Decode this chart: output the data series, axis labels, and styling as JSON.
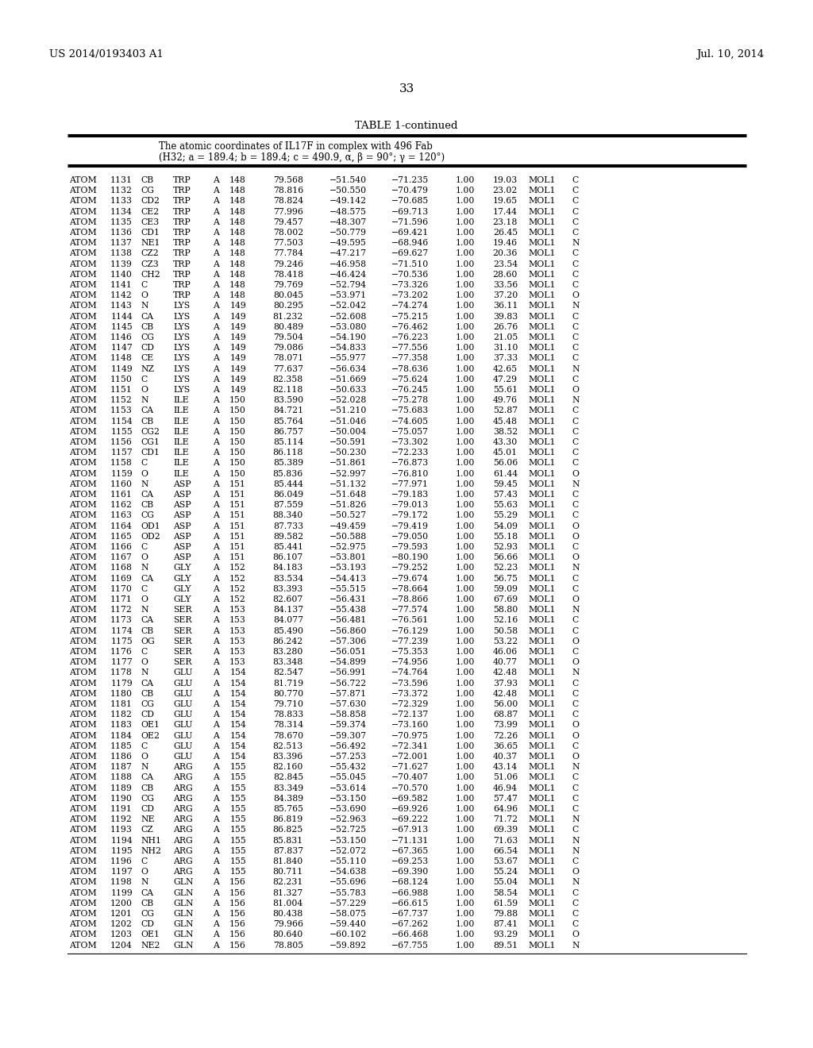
{
  "patent_left": "US 2014/0193403 A1",
  "patent_right": "Jul. 10, 2014",
  "page_number": "33",
  "table_title": "TABLE 1-continued",
  "subtitle_line1": "The atomic coordinates of IL17F in complex with 496 Fab",
  "subtitle_line2": "(H32; a = 189.4; b = 189.4; c = 490.9, α, β = 90°; γ = 120°)",
  "background_color": "#ffffff",
  "text_color": "#000000",
  "rows": [
    [
      "ATOM",
      "1131",
      "CB",
      "TRP",
      "A",
      "148",
      "79.568",
      "−51.540",
      "−71.235",
      "1.00",
      "19.03",
      "MOL1",
      "C"
    ],
    [
      "ATOM",
      "1132",
      "CG",
      "TRP",
      "A",
      "148",
      "78.816",
      "−50.550",
      "−70.479",
      "1.00",
      "23.02",
      "MOL1",
      "C"
    ],
    [
      "ATOM",
      "1133",
      "CD2",
      "TRP",
      "A",
      "148",
      "78.824",
      "−49.142",
      "−70.685",
      "1.00",
      "19.65",
      "MOL1",
      "C"
    ],
    [
      "ATOM",
      "1134",
      "CE2",
      "TRP",
      "A",
      "148",
      "77.996",
      "−48.575",
      "−69.713",
      "1.00",
      "17.44",
      "MOL1",
      "C"
    ],
    [
      "ATOM",
      "1135",
      "CE3",
      "TRP",
      "A",
      "148",
      "79.457",
      "−48.307",
      "−71.596",
      "1.00",
      "23.18",
      "MOL1",
      "C"
    ],
    [
      "ATOM",
      "1136",
      "CD1",
      "TRP",
      "A",
      "148",
      "78.002",
      "−50.779",
      "−69.421",
      "1.00",
      "26.45",
      "MOL1",
      "C"
    ],
    [
      "ATOM",
      "1137",
      "NE1",
      "TRP",
      "A",
      "148",
      "77.503",
      "−49.595",
      "−68.946",
      "1.00",
      "19.46",
      "MOL1",
      "N"
    ],
    [
      "ATOM",
      "1138",
      "CZ2",
      "TRP",
      "A",
      "148",
      "77.784",
      "−47.217",
      "−69.627",
      "1.00",
      "20.36",
      "MOL1",
      "C"
    ],
    [
      "ATOM",
      "1139",
      "CZ3",
      "TRP",
      "A",
      "148",
      "79.246",
      "−46.958",
      "−71.510",
      "1.00",
      "23.54",
      "MOL1",
      "C"
    ],
    [
      "ATOM",
      "1140",
      "CH2",
      "TRP",
      "A",
      "148",
      "78.418",
      "−46.424",
      "−70.536",
      "1.00",
      "28.60",
      "MOL1",
      "C"
    ],
    [
      "ATOM",
      "1141",
      "C",
      "TRP",
      "A",
      "148",
      "79.769",
      "−52.794",
      "−73.326",
      "1.00",
      "33.56",
      "MOL1",
      "C"
    ],
    [
      "ATOM",
      "1142",
      "O",
      "TRP",
      "A",
      "148",
      "80.045",
      "−53.971",
      "−73.202",
      "1.00",
      "37.20",
      "MOL1",
      "O"
    ],
    [
      "ATOM",
      "1143",
      "N",
      "LYS",
      "A",
      "149",
      "80.295",
      "−52.042",
      "−74.274",
      "1.00",
      "36.11",
      "MOL1",
      "N"
    ],
    [
      "ATOM",
      "1144",
      "CA",
      "LYS",
      "A",
      "149",
      "81.232",
      "−52.608",
      "−75.215",
      "1.00",
      "39.83",
      "MOL1",
      "C"
    ],
    [
      "ATOM",
      "1145",
      "CB",
      "LYS",
      "A",
      "149",
      "80.489",
      "−53.080",
      "−76.462",
      "1.00",
      "26.76",
      "MOL1",
      "C"
    ],
    [
      "ATOM",
      "1146",
      "CG",
      "LYS",
      "A",
      "149",
      "79.504",
      "−54.190",
      "−76.223",
      "1.00",
      "21.05",
      "MOL1",
      "C"
    ],
    [
      "ATOM",
      "1147",
      "CD",
      "LYS",
      "A",
      "149",
      "79.086",
      "−54.833",
      "−77.556",
      "1.00",
      "31.10",
      "MOL1",
      "C"
    ],
    [
      "ATOM",
      "1148",
      "CE",
      "LYS",
      "A",
      "149",
      "78.071",
      "−55.977",
      "−77.358",
      "1.00",
      "37.33",
      "MOL1",
      "C"
    ],
    [
      "ATOM",
      "1149",
      "NZ",
      "LYS",
      "A",
      "149",
      "77.637",
      "−56.634",
      "−78.636",
      "1.00",
      "42.65",
      "MOL1",
      "N"
    ],
    [
      "ATOM",
      "1150",
      "C",
      "LYS",
      "A",
      "149",
      "82.358",
      "−51.669",
      "−75.624",
      "1.00",
      "47.29",
      "MOL1",
      "C"
    ],
    [
      "ATOM",
      "1151",
      "O",
      "LYS",
      "A",
      "149",
      "82.118",
      "−50.633",
      "−76.245",
      "1.00",
      "55.61",
      "MOL1",
      "O"
    ],
    [
      "ATOM",
      "1152",
      "N",
      "ILE",
      "A",
      "150",
      "83.590",
      "−52.028",
      "−75.278",
      "1.00",
      "49.76",
      "MOL1",
      "N"
    ],
    [
      "ATOM",
      "1153",
      "CA",
      "ILE",
      "A",
      "150",
      "84.721",
      "−51.210",
      "−75.683",
      "1.00",
      "52.87",
      "MOL1",
      "C"
    ],
    [
      "ATOM",
      "1154",
      "CB",
      "ILE",
      "A",
      "150",
      "85.764",
      "−51.046",
      "−74.605",
      "1.00",
      "45.48",
      "MOL1",
      "C"
    ],
    [
      "ATOM",
      "1155",
      "CG2",
      "ILE",
      "A",
      "150",
      "86.757",
      "−50.004",
      "−75.057",
      "1.00",
      "38.52",
      "MOL1",
      "C"
    ],
    [
      "ATOM",
      "1156",
      "CG1",
      "ILE",
      "A",
      "150",
      "85.114",
      "−50.591",
      "−73.302",
      "1.00",
      "43.30",
      "MOL1",
      "C"
    ],
    [
      "ATOM",
      "1157",
      "CD1",
      "ILE",
      "A",
      "150",
      "86.118",
      "−50.230",
      "−72.233",
      "1.00",
      "45.01",
      "MOL1",
      "C"
    ],
    [
      "ATOM",
      "1158",
      "C",
      "ILE",
      "A",
      "150",
      "85.389",
      "−51.861",
      "−76.873",
      "1.00",
      "56.06",
      "MOL1",
      "C"
    ],
    [
      "ATOM",
      "1159",
      "O",
      "ILE",
      "A",
      "150",
      "85.836",
      "−52.997",
      "−76.810",
      "1.00",
      "61.44",
      "MOL1",
      "O"
    ],
    [
      "ATOM",
      "1160",
      "N",
      "ASP",
      "A",
      "151",
      "85.444",
      "−51.132",
      "−77.971",
      "1.00",
      "59.45",
      "MOL1",
      "N"
    ],
    [
      "ATOM",
      "1161",
      "CA",
      "ASP",
      "A",
      "151",
      "86.049",
      "−51.648",
      "−79.183",
      "1.00",
      "57.43",
      "MOL1",
      "C"
    ],
    [
      "ATOM",
      "1162",
      "CB",
      "ASP",
      "A",
      "151",
      "87.559",
      "−51.826",
      "−79.013",
      "1.00",
      "55.63",
      "MOL1",
      "C"
    ],
    [
      "ATOM",
      "1163",
      "CG",
      "ASP",
      "A",
      "151",
      "88.340",
      "−50.527",
      "−79.172",
      "1.00",
      "55.29",
      "MOL1",
      "C"
    ],
    [
      "ATOM",
      "1164",
      "OD1",
      "ASP",
      "A",
      "151",
      "87.733",
      "−49.459",
      "−79.419",
      "1.00",
      "54.09",
      "MOL1",
      "O"
    ],
    [
      "ATOM",
      "1165",
      "OD2",
      "ASP",
      "A",
      "151",
      "89.582",
      "−50.588",
      "−79.050",
      "1.00",
      "55.18",
      "MOL1",
      "O"
    ],
    [
      "ATOM",
      "1166",
      "C",
      "ASP",
      "A",
      "151",
      "85.441",
      "−52.975",
      "−79.593",
      "1.00",
      "52.93",
      "MOL1",
      "C"
    ],
    [
      "ATOM",
      "1167",
      "O",
      "ASP",
      "A",
      "151",
      "86.107",
      "−53.801",
      "−80.190",
      "1.00",
      "56.66",
      "MOL1",
      "O"
    ],
    [
      "ATOM",
      "1168",
      "N",
      "GLY",
      "A",
      "152",
      "84.183",
      "−53.193",
      "−79.252",
      "1.00",
      "52.23",
      "MOL1",
      "N"
    ],
    [
      "ATOM",
      "1169",
      "CA",
      "GLY",
      "A",
      "152",
      "83.534",
      "−54.413",
      "−79.674",
      "1.00",
      "56.75",
      "MOL1",
      "C"
    ],
    [
      "ATOM",
      "1170",
      "C",
      "GLY",
      "A",
      "152",
      "83.393",
      "−55.515",
      "−78.664",
      "1.00",
      "59.09",
      "MOL1",
      "C"
    ],
    [
      "ATOM",
      "1171",
      "O",
      "GLY",
      "A",
      "152",
      "82.607",
      "−56.431",
      "−78.866",
      "1.00",
      "67.69",
      "MOL1",
      "O"
    ],
    [
      "ATOM",
      "1172",
      "N",
      "SER",
      "A",
      "153",
      "84.137",
      "−55.438",
      "−77.574",
      "1.00",
      "58.80",
      "MOL1",
      "N"
    ],
    [
      "ATOM",
      "1173",
      "CA",
      "SER",
      "A",
      "153",
      "84.077",
      "−56.481",
      "−76.561",
      "1.00",
      "52.16",
      "MOL1",
      "C"
    ],
    [
      "ATOM",
      "1174",
      "CB",
      "SER",
      "A",
      "153",
      "85.490",
      "−56.860",
      "−76.129",
      "1.00",
      "50.58",
      "MOL1",
      "C"
    ],
    [
      "ATOM",
      "1175",
      "OG",
      "SER",
      "A",
      "153",
      "86.242",
      "−57.306",
      "−77.239",
      "1.00",
      "53.22",
      "MOL1",
      "O"
    ],
    [
      "ATOM",
      "1176",
      "C",
      "SER",
      "A",
      "153",
      "83.280",
      "−56.051",
      "−75.353",
      "1.00",
      "46.06",
      "MOL1",
      "C"
    ],
    [
      "ATOM",
      "1177",
      "O",
      "SER",
      "A",
      "153",
      "83.348",
      "−54.899",
      "−74.956",
      "1.00",
      "40.77",
      "MOL1",
      "O"
    ],
    [
      "ATOM",
      "1178",
      "N",
      "GLU",
      "A",
      "154",
      "82.547",
      "−56.991",
      "−74.764",
      "1.00",
      "42.48",
      "MOL1",
      "N"
    ],
    [
      "ATOM",
      "1179",
      "CA",
      "GLU",
      "A",
      "154",
      "81.719",
      "−56.722",
      "−73.596",
      "1.00",
      "37.93",
      "MOL1",
      "C"
    ],
    [
      "ATOM",
      "1180",
      "CB",
      "GLU",
      "A",
      "154",
      "80.770",
      "−57.871",
      "−73.372",
      "1.00",
      "42.48",
      "MOL1",
      "C"
    ],
    [
      "ATOM",
      "1181",
      "CG",
      "GLU",
      "A",
      "154",
      "79.710",
      "−57.630",
      "−72.329",
      "1.00",
      "56.00",
      "MOL1",
      "C"
    ],
    [
      "ATOM",
      "1182",
      "CD",
      "GLU",
      "A",
      "154",
      "78.833",
      "−58.858",
      "−72.137",
      "1.00",
      "68.87",
      "MOL1",
      "C"
    ],
    [
      "ATOM",
      "1183",
      "OE1",
      "GLU",
      "A",
      "154",
      "78.314",
      "−59.374",
      "−73.160",
      "1.00",
      "73.99",
      "MOL1",
      "O"
    ],
    [
      "ATOM",
      "1184",
      "OE2",
      "GLU",
      "A",
      "154",
      "78.670",
      "−59.307",
      "−70.975",
      "1.00",
      "72.26",
      "MOL1",
      "O"
    ],
    [
      "ATOM",
      "1185",
      "C",
      "GLU",
      "A",
      "154",
      "82.513",
      "−56.492",
      "−72.341",
      "1.00",
      "36.65",
      "MOL1",
      "C"
    ],
    [
      "ATOM",
      "1186",
      "O",
      "GLU",
      "A",
      "154",
      "83.396",
      "−57.253",
      "−72.001",
      "1.00",
      "40.37",
      "MOL1",
      "O"
    ],
    [
      "ATOM",
      "1187",
      "N",
      "ARG",
      "A",
      "155",
      "82.160",
      "−55.432",
      "−71.627",
      "1.00",
      "43.14",
      "MOL1",
      "N"
    ],
    [
      "ATOM",
      "1188",
      "CA",
      "ARG",
      "A",
      "155",
      "82.845",
      "−55.045",
      "−70.407",
      "1.00",
      "51.06",
      "MOL1",
      "C"
    ],
    [
      "ATOM",
      "1189",
      "CB",
      "ARG",
      "A",
      "155",
      "83.349",
      "−53.614",
      "−70.570",
      "1.00",
      "46.94",
      "MOL1",
      "C"
    ],
    [
      "ATOM",
      "1190",
      "CG",
      "ARG",
      "A",
      "155",
      "84.389",
      "−53.150",
      "−69.582",
      "1.00",
      "57.47",
      "MOL1",
      "C"
    ],
    [
      "ATOM",
      "1191",
      "CD",
      "ARG",
      "A",
      "155",
      "85.765",
      "−53.690",
      "−69.926",
      "1.00",
      "64.96",
      "MOL1",
      "C"
    ],
    [
      "ATOM",
      "1192",
      "NE",
      "ARG",
      "A",
      "155",
      "86.819",
      "−52.963",
      "−69.222",
      "1.00",
      "71.72",
      "MOL1",
      "N"
    ],
    [
      "ATOM",
      "1193",
      "CZ",
      "ARG",
      "A",
      "155",
      "86.825",
      "−52.725",
      "−67.913",
      "1.00",
      "69.39",
      "MOL1",
      "C"
    ],
    [
      "ATOM",
      "1194",
      "NH1",
      "ARG",
      "A",
      "155",
      "85.831",
      "−53.150",
      "−71.131",
      "1.00",
      "71.63",
      "MOL1",
      "N"
    ],
    [
      "ATOM",
      "1195",
      "NH2",
      "ARG",
      "A",
      "155",
      "87.837",
      "−52.072",
      "−67.365",
      "1.00",
      "66.54",
      "MOL1",
      "N"
    ],
    [
      "ATOM",
      "1196",
      "C",
      "ARG",
      "A",
      "155",
      "81.840",
      "−55.110",
      "−69.253",
      "1.00",
      "53.67",
      "MOL1",
      "C"
    ],
    [
      "ATOM",
      "1197",
      "O",
      "ARG",
      "A",
      "155",
      "80.711",
      "−54.638",
      "−69.390",
      "1.00",
      "55.24",
      "MOL1",
      "O"
    ],
    [
      "ATOM",
      "1198",
      "N",
      "GLN",
      "A",
      "156",
      "82.231",
      "−55.696",
      "−68.124",
      "1.00",
      "55.04",
      "MOL1",
      "N"
    ],
    [
      "ATOM",
      "1199",
      "CA",
      "GLN",
      "A",
      "156",
      "81.327",
      "−55.783",
      "−66.988",
      "1.00",
      "58.54",
      "MOL1",
      "C"
    ],
    [
      "ATOM",
      "1200",
      "CB",
      "GLN",
      "A",
      "156",
      "81.004",
      "−57.229",
      "−66.615",
      "1.00",
      "61.59",
      "MOL1",
      "C"
    ],
    [
      "ATOM",
      "1201",
      "CG",
      "GLN",
      "A",
      "156",
      "80.438",
      "−58.075",
      "−67.737",
      "1.00",
      "79.88",
      "MOL1",
      "C"
    ],
    [
      "ATOM",
      "1202",
      "CD",
      "GLN",
      "A",
      "156",
      "79.966",
      "−59.440",
      "−67.262",
      "1.00",
      "87.41",
      "MOL1",
      "C"
    ],
    [
      "ATOM",
      "1203",
      "OE1",
      "GLN",
      "A",
      "156",
      "80.640",
      "−60.102",
      "−66.468",
      "1.00",
      "93.29",
      "MOL1",
      "O"
    ],
    [
      "ATOM",
      "1204",
      "NE2",
      "GLN",
      "A",
      "156",
      "78.805",
      "−59.892",
      "−67.755",
      "1.00",
      "89.51",
      "MOL1",
      "N"
    ]
  ]
}
